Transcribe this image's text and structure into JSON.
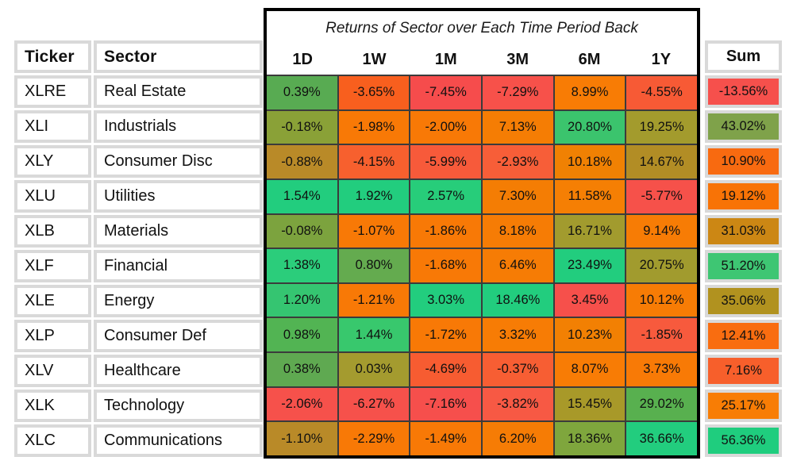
{
  "title": "Returns of Sector over Each Time Period Back",
  "columns": {
    "ticker": "Ticker",
    "sector": "Sector",
    "periods": [
      "1D",
      "1W",
      "1M",
      "3M",
      "6M",
      "1Y"
    ],
    "sum": "Sum"
  },
  "rows": [
    {
      "ticker": "XLRE",
      "sector": "Real Estate",
      "cells": [
        {
          "text": "0.39%",
          "bg": "#58ab52"
        },
        {
          "text": "-3.65%",
          "bg": "#f85f1e"
        },
        {
          "text": "-7.45%",
          "bg": "#f64c4c"
        },
        {
          "text": "-7.29%",
          "bg": "#f7514a"
        },
        {
          "text": "8.99%",
          "bg": "#f87c05"
        },
        {
          "text": "-4.55%",
          "bg": "#f75a35"
        }
      ],
      "sum": {
        "text": "-13.56%",
        "bg": "#f6504c"
      }
    },
    {
      "ticker": "XLI",
      "sector": "Industrials",
      "cells": [
        {
          "text": "-0.18%",
          "bg": "#8aa137"
        },
        {
          "text": "-1.98%",
          "bg": "#f87906"
        },
        {
          "text": "-2.00%",
          "bg": "#f87906"
        },
        {
          "text": "7.13%",
          "bg": "#f57d04"
        },
        {
          "text": "20.80%",
          "bg": "#3bc46d"
        },
        {
          "text": "19.25%",
          "bg": "#a39b2d"
        }
      ],
      "sum": {
        "text": "43.02%",
        "bg": "#7fa24a"
      }
    },
    {
      "ticker": "XLY",
      "sector": "Consumer Disc",
      "cells": [
        {
          "text": "-0.88%",
          "bg": "#b98a28"
        },
        {
          "text": "-4.15%",
          "bg": "#f7602e"
        },
        {
          "text": "-5.99%",
          "bg": "#f75a3a"
        },
        {
          "text": "-2.93%",
          "bg": "#f75e38"
        },
        {
          "text": "10.18%",
          "bg": "#f08103"
        },
        {
          "text": "14.67%",
          "bg": "#b28d25"
        }
      ],
      "sum": {
        "text": "10.90%",
        "bg": "#f86a10"
      }
    },
    {
      "ticker": "XLU",
      "sector": "Utilities",
      "cells": [
        {
          "text": "1.54%",
          "bg": "#22cd7e"
        },
        {
          "text": "1.92%",
          "bg": "#22cd7e"
        },
        {
          "text": "2.57%",
          "bg": "#27cd7a"
        },
        {
          "text": "7.30%",
          "bg": "#f47d04"
        },
        {
          "text": "11.58%",
          "bg": "#f57f04"
        },
        {
          "text": "-5.77%",
          "bg": "#f6514a"
        }
      ],
      "sum": {
        "text": "19.12%",
        "bg": "#f87306"
      }
    },
    {
      "ticker": "XLB",
      "sector": "Materials",
      "cells": [
        {
          "text": "-0.08%",
          "bg": "#7ca33e"
        },
        {
          "text": "-1.07%",
          "bg": "#f87906"
        },
        {
          "text": "-1.86%",
          "bg": "#f87906"
        },
        {
          "text": "8.18%",
          "bg": "#f67c05"
        },
        {
          "text": "16.71%",
          "bg": "#a29b2e"
        },
        {
          "text": "9.14%",
          "bg": "#f77c05"
        }
      ],
      "sum": {
        "text": "31.03%",
        "bg": "#cc8714"
      }
    },
    {
      "ticker": "XLF",
      "sector": "Financial",
      "cells": [
        {
          "text": "1.38%",
          "bg": "#2bcd7b"
        },
        {
          "text": "0.80%",
          "bg": "#64ab4f"
        },
        {
          "text": "-1.68%",
          "bg": "#f87906"
        },
        {
          "text": "6.46%",
          "bg": "#f67c05"
        },
        {
          "text": "23.49%",
          "bg": "#22cd7e"
        },
        {
          "text": "20.75%",
          "bg": "#a19b2e"
        }
      ],
      "sum": {
        "text": "51.20%",
        "bg": "#3ec673"
      }
    },
    {
      "ticker": "XLE",
      "sector": "Energy",
      "cells": [
        {
          "text": "1.20%",
          "bg": "#35c571"
        },
        {
          "text": "-1.21%",
          "bg": "#f87906"
        },
        {
          "text": "3.03%",
          "bg": "#22cd7e"
        },
        {
          "text": "18.46%",
          "bg": "#22cd7e"
        },
        {
          "text": "3.45%",
          "bg": "#f6504b"
        },
        {
          "text": "10.12%",
          "bg": "#f77c05"
        }
      ],
      "sum": {
        "text": "35.06%",
        "bg": "#b1921f"
      }
    },
    {
      "ticker": "XLP",
      "sector": "Consumer Def",
      "cells": [
        {
          "text": "0.98%",
          "bg": "#52b453"
        },
        {
          "text": "1.44%",
          "bg": "#38c86d"
        },
        {
          "text": "-1.72%",
          "bg": "#f87906"
        },
        {
          "text": "3.32%",
          "bg": "#f77c05"
        },
        {
          "text": "10.23%",
          "bg": "#f28003"
        },
        {
          "text": "-1.85%",
          "bg": "#f75a3d"
        }
      ],
      "sum": {
        "text": "12.41%",
        "bg": "#f96d10"
      }
    },
    {
      "ticker": "XLV",
      "sector": "Healthcare",
      "cells": [
        {
          "text": "0.38%",
          "bg": "#5fa951"
        },
        {
          "text": "0.03%",
          "bg": "#a49b2f"
        },
        {
          "text": "-4.69%",
          "bg": "#f75c31"
        },
        {
          "text": "-0.37%",
          "bg": "#f75e33"
        },
        {
          "text": "8.07%",
          "bg": "#f87c05"
        },
        {
          "text": "3.73%",
          "bg": "#f87a06"
        }
      ],
      "sum": {
        "text": "7.16%",
        "bg": "#f75f2b"
      }
    },
    {
      "ticker": "XLK",
      "sector": "Technology",
      "cells": [
        {
          "text": "-2.06%",
          "bg": "#f6514b"
        },
        {
          "text": "-6.27%",
          "bg": "#f6514b"
        },
        {
          "text": "-7.16%",
          "bg": "#f64f4c"
        },
        {
          "text": "-3.82%",
          "bg": "#f75944"
        },
        {
          "text": "15.45%",
          "bg": "#a89929"
        },
        {
          "text": "29.02%",
          "bg": "#58b04f"
        }
      ],
      "sum": {
        "text": "25.17%",
        "bg": "#f87d05"
      }
    },
    {
      "ticker": "XLC",
      "sector": "Communications",
      "cells": [
        {
          "text": "-1.10%",
          "bg": "#b98a28"
        },
        {
          "text": "-2.29%",
          "bg": "#f87906"
        },
        {
          "text": "-1.49%",
          "bg": "#f87906"
        },
        {
          "text": "6.20%",
          "bg": "#f67c05"
        },
        {
          "text": "18.36%",
          "bg": "#7fa63d"
        },
        {
          "text": "36.66%",
          "bg": "#22cd7e"
        }
      ],
      "sum": {
        "text": "56.36%",
        "bg": "#1fcd7e"
      }
    }
  ],
  "theme": {
    "grid_line_dark": "#3b3b3b",
    "frame_black": "#000000",
    "grid_line_light": "#d9d9d9",
    "scale_min_red": "#f64c4c",
    "scale_mid_orange": "#f87906",
    "scale_max_green": "#22cd7e"
  },
  "chart_data": {
    "type": "heatmap",
    "title": "Returns of Sector over Each Time Period Back",
    "columns": [
      "1D",
      "1W",
      "1M",
      "3M",
      "6M",
      "1Y",
      "Sum"
    ],
    "row_labels": [
      [
        "XLRE",
        "Real Estate"
      ],
      [
        "XLI",
        "Industrials"
      ],
      [
        "XLY",
        "Consumer Disc"
      ],
      [
        "XLU",
        "Utilities"
      ],
      [
        "XLB",
        "Materials"
      ],
      [
        "XLF",
        "Financial"
      ],
      [
        "XLE",
        "Energy"
      ],
      [
        "XLP",
        "Consumer Def"
      ],
      [
        "XLV",
        "Healthcare"
      ],
      [
        "XLK",
        "Technology"
      ],
      [
        "XLC",
        "Communications"
      ]
    ],
    "values_percent": [
      [
        0.39,
        -3.65,
        -7.45,
        -7.29,
        8.99,
        -4.55,
        -13.56
      ],
      [
        -0.18,
        -1.98,
        -2.0,
        7.13,
        20.8,
        19.25,
        43.02
      ],
      [
        -0.88,
        -4.15,
        -5.99,
        -2.93,
        10.18,
        14.67,
        10.9
      ],
      [
        1.54,
        1.92,
        2.57,
        7.3,
        11.58,
        -5.77,
        19.12
      ],
      [
        -0.08,
        -1.07,
        -1.86,
        8.18,
        16.71,
        9.14,
        31.03
      ],
      [
        1.38,
        0.8,
        -1.68,
        6.46,
        23.49,
        20.75,
        51.2
      ],
      [
        1.2,
        -1.21,
        3.03,
        18.46,
        3.45,
        10.12,
        35.06
      ],
      [
        0.98,
        1.44,
        -1.72,
        3.32,
        10.23,
        -1.85,
        12.41
      ],
      [
        0.38,
        0.03,
        -4.69,
        -0.37,
        8.07,
        3.73,
        7.16
      ],
      [
        -2.06,
        -6.27,
        -7.16,
        -3.82,
        15.45,
        29.02,
        25.17
      ],
      [
        -1.1,
        -2.29,
        -1.49,
        6.2,
        18.36,
        36.66,
        56.36
      ]
    ],
    "color_scale": "per-column: red = lowest value, orange = middle, green = highest value",
    "legend_position": "none",
    "grid": "dark gray lines inside black frame; light gray lines for ticker/sector/sum columns"
  }
}
